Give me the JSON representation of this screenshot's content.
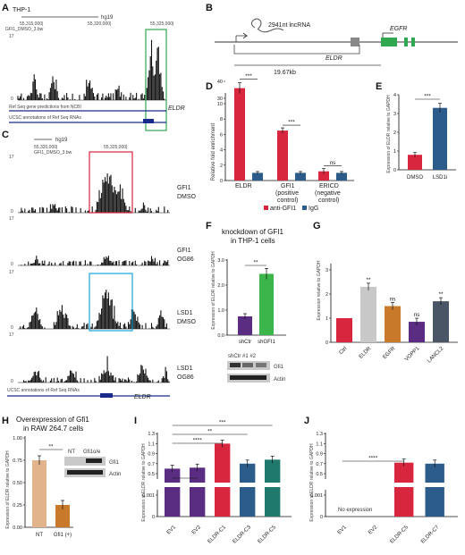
{
  "figure": {
    "A": {
      "label": "A",
      "cell": "THP-1",
      "assembly": "hg19",
      "coord_start": "55,315,000|",
      "coord_mid": "55,320,000|",
      "coord_end": "55,325,000|",
      "track": "GFI1_DMSO_3.bw",
      "ymax": "17",
      "ymin": "0",
      "ref_label": "Ref Seq gene predictions from NCBI",
      "ucsc_label": "UCSC annotations of Ref Seq RNAs",
      "gene": "ELDR"
    },
    "B": {
      "label": "B",
      "lnc": "2941nt lncRNA",
      "gene": "EGFR",
      "eldr": "ELDR",
      "distance": "19.67kb"
    },
    "C": {
      "label": "C",
      "assembly": "hg19",
      "coord_start": "55,320,000|",
      "coord_end": "55,325,000|",
      "track": "GFI1_DMSO_3.bw",
      "tracks": [
        {
          "ymax": "17",
          "ymin": "0",
          "l1": "GFI1",
          "l2": "DMSO"
        },
        {
          "ymax": "17",
          "ymin": "0",
          "l1": "GFI1",
          "l2": "OG86"
        },
        {
          "ymax": "17",
          "ymin": "0",
          "l1": "LSD1",
          "l2": "DMSO"
        },
        {
          "ymax": "17",
          "ymin": "0",
          "l1": "LSD1",
          "l2": "OG86"
        }
      ],
      "ucsc_label": "UCSC annotations of Ref Seq RNAs",
      "gene": "ELDR"
    },
    "D": {
      "label": "D",
      "ylabel": "Relative fold enrichment",
      "yticks": [
        "0",
        "2",
        "4",
        "6",
        "8",
        "10",
        "30",
        "40"
      ],
      "groups": [
        "ELDR",
        "GFI1",
        "ERICD"
      ],
      "group_sub": [
        [],
        [
          "(positive",
          "control)"
        ],
        [
          "(negative",
          "control)"
        ]
      ],
      "legend": [
        "anti-GFI1",
        "IgG"
      ],
      "sig": [
        "***",
        "***",
        "ns"
      ]
    },
    "E": {
      "label": "E",
      "ylabel": "Expression of ELDR relative to GAPDH",
      "yticks": [
        "0",
        "1",
        "2",
        "3",
        "4"
      ],
      "sig": "***"
    },
    "F": {
      "label": "F",
      "title1": "knockdown of GFI1",
      "title2": "in THP-1 cells",
      "ylabel": "Expression of ELDR relative to GAPDH",
      "yticks": [
        "0.0",
        "1.0",
        "2.0",
        "3.0"
      ],
      "sig": "**",
      "blot_header": "shCtr #1 #2",
      "blot_rows": [
        "Gfi1",
        "Actin"
      ]
    },
    "G": {
      "label": "G",
      "ylabel": "Expression relative to GAPDH",
      "yticks": [
        "0",
        "1",
        "2",
        "3"
      ],
      "sig": [
        "",
        "**",
        "ns",
        "ns",
        "**"
      ]
    },
    "H": {
      "label": "H",
      "title1": "Overexpression of Gfi1",
      "title2": "in RAW 264.7 cells",
      "ylabel": "Expression of ELDR relative to GAPDH",
      "yticks": [
        "0.00",
        "0.25",
        "0.50",
        "0.75",
        "1.00"
      ],
      "sig": "**",
      "blot_header": [
        "NT",
        "Gfi1o/e"
      ],
      "blot_rows": [
        "Gfi1",
        "Actin"
      ]
    },
    "I": {
      "label": "I",
      "ylabel": "Expression of ELDR relative to GAPDH",
      "yticks_low": [
        "0",
        "0.001"
      ],
      "yticks_high": [
        "0.5",
        "0.7",
        "0.9",
        "1.1",
        "1.3"
      ],
      "sig": [
        "****",
        "**",
        "***"
      ]
    },
    "J": {
      "label": "J",
      "ylabel": "Expression of ELDR relative to GAPDH",
      "yticks_low": [
        "0",
        "0.001"
      ],
      "yticks_high": [
        "0.5",
        "0.7",
        "0.9",
        "1.1",
        "1.3"
      ],
      "sig": "****",
      "note": "No expression"
    }
  },
  "chart_data": [
    {
      "panel": "D",
      "type": "bar",
      "categories": [
        "ELDR",
        "GFI1",
        "ERICD"
      ],
      "series": [
        {
          "name": "anti-GFI1",
          "color": "#d7263d",
          "values": [
            36,
            6.5,
            1.2
          ]
        },
        {
          "name": "IgG",
          "color": "#2b5c8a",
          "values": [
            1.0,
            1.0,
            1.0
          ]
        }
      ]
    },
    {
      "panel": "E",
      "type": "bar",
      "categories": [
        "DMSO",
        "LSD1i"
      ],
      "values": [
        0.8,
        3.3
      ],
      "colors": [
        "#d7263d",
        "#2b5c8a"
      ],
      "ylim": [
        0,
        4
      ]
    },
    {
      "panel": "F",
      "type": "bar",
      "categories": [
        "shCtr",
        "shGFI1"
      ],
      "values": [
        0.75,
        2.45
      ],
      "colors": [
        "#5b2d82",
        "#3cb54a"
      ],
      "ylim": [
        0,
        3
      ]
    },
    {
      "panel": "G",
      "type": "bar",
      "categories": [
        "Ctrl",
        "ELDR",
        "EGFR",
        "VOPP1",
        "LANCL2"
      ],
      "values": [
        1.0,
        2.3,
        1.5,
        0.85,
        1.7
      ],
      "colors": [
        "#d7263d",
        "#c8c8c8",
        "#c87a2a",
        "#5b2d82",
        "#4a5566"
      ],
      "ylim": [
        0,
        3
      ]
    },
    {
      "panel": "H",
      "type": "bar",
      "categories": [
        "NT",
        "Gfi1 (+)"
      ],
      "values": [
        0.75,
        0.25
      ],
      "colors": [
        "#e2b48c",
        "#c87a2a"
      ],
      "ylim": [
        0,
        1
      ]
    },
    {
      "panel": "I",
      "type": "bar",
      "categories": [
        "EV1",
        "EV2",
        "ELDR-C1",
        "ELDR-C3",
        "ELDR-C5"
      ],
      "values": [
        0.6,
        0.62,
        1.1,
        0.7,
        0.78
      ],
      "colors": [
        "#5b2d82",
        "#5b2d82",
        "#d7263d",
        "#2b5c8a",
        "#1f7a6d"
      ]
    },
    {
      "panel": "J",
      "type": "bar",
      "categories": [
        "EV1",
        "EV2",
        "ELDR-C5",
        "ELDR-C7"
      ],
      "values": [
        0,
        0,
        0.72,
        0.7
      ],
      "colors": [
        "#5b2d82",
        "#5b2d82",
        "#d7263d",
        "#2b5c8a"
      ]
    }
  ]
}
